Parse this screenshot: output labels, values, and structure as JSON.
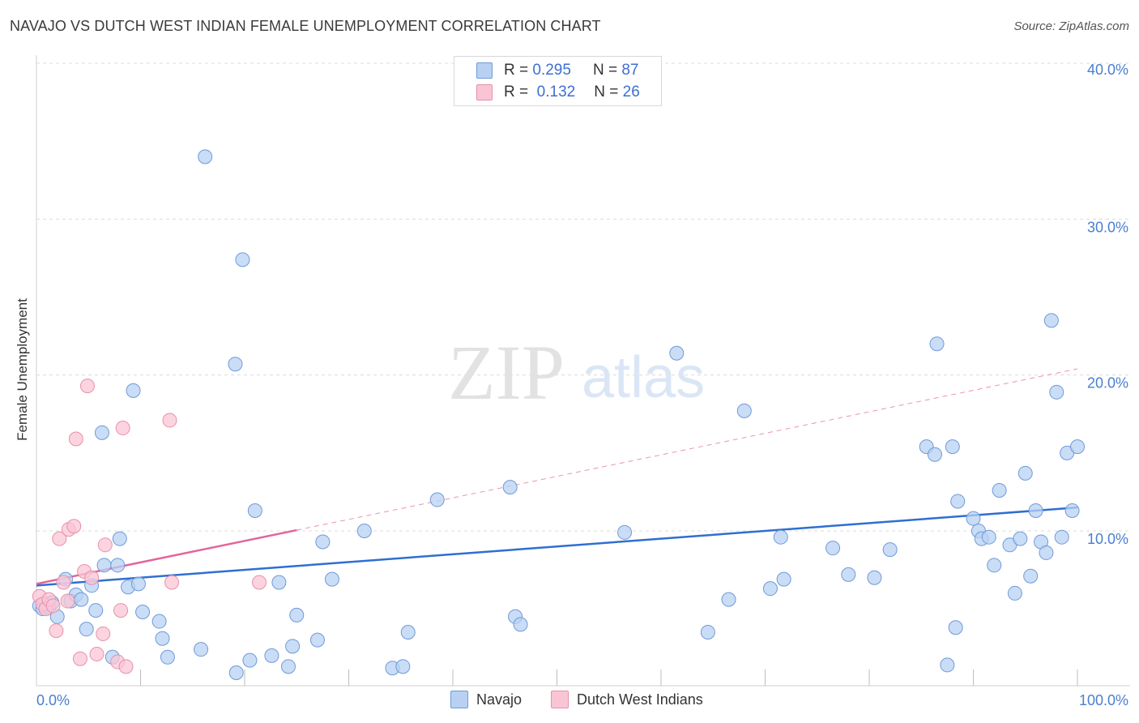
{
  "title": "NAVAJO VS DUTCH WEST INDIAN FEMALE UNEMPLOYMENT CORRELATION CHART",
  "source": "Source: ZipAtlas.com",
  "watermark": {
    "zip": "ZIP",
    "atlas": "atlas"
  },
  "legend": {
    "rows": [
      {
        "r_label": "R =",
        "r_value": "0.295",
        "n_label": "N =",
        "n_value": "87",
        "color": "#b8d1f3",
        "border": "#6f9ad8"
      },
      {
        "r_label": "R =",
        "r_value": "0.132",
        "n_label": "N =",
        "n_value": "26",
        "color": "#f9c5d5",
        "border": "#e890ab"
      }
    ]
  },
  "chart_data": {
    "type": "scatter",
    "title": "NAVAJO VS DUTCH WEST INDIAN FEMALE UNEMPLOYMENT CORRELATION CHART",
    "xlabel": "",
    "ylabel": "Female Unemployment",
    "xlim": [
      0,
      100
    ],
    "ylim": [
      0,
      40
    ],
    "x_tick_labels": [
      "0.0%",
      "100.0%"
    ],
    "y_ticks": [
      10,
      20,
      30,
      40
    ],
    "y_tick_labels": [
      "10.0%",
      "20.0%",
      "30.0%",
      "40.0%"
    ],
    "grid": true,
    "series": [
      {
        "name": "Navajo",
        "color": "#b8d1f3",
        "stroke": "#6f9ad8",
        "trend": {
          "x0": 0,
          "y0": 6.5,
          "x1": 100,
          "y1": 11.5,
          "color": "#2f6fd0"
        },
        "points": [
          [
            16.2,
            34.0
          ],
          [
            19.8,
            27.4
          ],
          [
            19.1,
            20.7
          ],
          [
            9.3,
            19.0
          ],
          [
            6.3,
            16.3
          ],
          [
            21.0,
            11.3
          ],
          [
            8.0,
            9.5
          ],
          [
            27.5,
            9.3
          ],
          [
            31.5,
            10.0
          ],
          [
            38.5,
            12.0
          ],
          [
            45.5,
            12.8
          ],
          [
            56.5,
            9.9
          ],
          [
            61.5,
            21.4
          ],
          [
            68.0,
            17.7
          ],
          [
            71.5,
            9.6
          ],
          [
            64.5,
            3.5
          ],
          [
            66.5,
            5.6
          ],
          [
            70.5,
            6.3
          ],
          [
            71.8,
            6.9
          ],
          [
            78.0,
            7.2
          ],
          [
            76.5,
            8.9
          ],
          [
            80.5,
            7.0
          ],
          [
            82.0,
            8.8
          ],
          [
            85.5,
            15.4
          ],
          [
            86.3,
            14.9
          ],
          [
            86.5,
            22.0
          ],
          [
            88.0,
            15.4
          ],
          [
            88.5,
            11.9
          ],
          [
            90.0,
            10.8
          ],
          [
            90.5,
            10.0
          ],
          [
            90.8,
            9.5
          ],
          [
            91.5,
            9.6
          ],
          [
            92.0,
            7.8
          ],
          [
            92.5,
            12.6
          ],
          [
            93.5,
            9.1
          ],
          [
            94.0,
            6.0
          ],
          [
            94.5,
            9.5
          ],
          [
            95.0,
            13.7
          ],
          [
            95.5,
            7.1
          ],
          [
            96.0,
            11.3
          ],
          [
            96.5,
            9.3
          ],
          [
            97.0,
            8.6
          ],
          [
            97.5,
            23.5
          ],
          [
            98.0,
            18.9
          ],
          [
            98.5,
            9.6
          ],
          [
            99.0,
            15.0
          ],
          [
            99.5,
            11.3
          ],
          [
            100.0,
            15.4
          ],
          [
            88.3,
            3.8
          ],
          [
            87.5,
            1.4
          ],
          [
            0.3,
            5.2
          ],
          [
            0.6,
            5.0
          ],
          [
            0.9,
            5.3
          ],
          [
            1.2,
            5.1
          ],
          [
            1.5,
            5.4
          ],
          [
            2.0,
            4.5
          ],
          [
            2.8,
            6.9
          ],
          [
            3.3,
            5.5
          ],
          [
            3.8,
            5.9
          ],
          [
            4.3,
            5.6
          ],
          [
            4.8,
            3.7
          ],
          [
            5.3,
            6.5
          ],
          [
            5.7,
            4.9
          ],
          [
            6.5,
            7.8
          ],
          [
            7.3,
            1.9
          ],
          [
            7.8,
            7.8
          ],
          [
            8.8,
            6.4
          ],
          [
            9.8,
            6.6
          ],
          [
            10.2,
            4.8
          ],
          [
            11.8,
            4.2
          ],
          [
            12.1,
            3.1
          ],
          [
            12.6,
            1.9
          ],
          [
            15.8,
            2.4
          ],
          [
            19.2,
            0.9
          ],
          [
            20.5,
            1.7
          ],
          [
            22.6,
            2.0
          ],
          [
            23.3,
            6.7
          ],
          [
            24.2,
            1.3
          ],
          [
            24.6,
            2.6
          ],
          [
            25.0,
            4.6
          ],
          [
            27.0,
            3.0
          ],
          [
            28.4,
            6.9
          ],
          [
            34.2,
            1.2
          ],
          [
            35.2,
            1.3
          ],
          [
            35.7,
            3.5
          ],
          [
            46.0,
            4.5
          ],
          [
            46.5,
            4.0
          ]
        ]
      },
      {
        "name": "Dutch West Indians",
        "color": "#f9c5d5",
        "stroke": "#e890ab",
        "trend": {
          "x0": 0,
          "y0": 6.6,
          "x1": 100,
          "y1": 20.4,
          "color": "#e2659a",
          "solid_until": 25
        },
        "points": [
          [
            0.3,
            5.8
          ],
          [
            0.6,
            5.3
          ],
          [
            0.9,
            5.0
          ],
          [
            1.2,
            5.6
          ],
          [
            1.6,
            5.2
          ],
          [
            1.9,
            3.6
          ],
          [
            2.2,
            9.5
          ],
          [
            2.6,
            6.7
          ],
          [
            3.0,
            5.5
          ],
          [
            3.1,
            10.1
          ],
          [
            3.6,
            10.3
          ],
          [
            3.8,
            15.9
          ],
          [
            4.2,
            1.8
          ],
          [
            4.6,
            7.4
          ],
          [
            4.9,
            19.3
          ],
          [
            5.3,
            7.0
          ],
          [
            5.8,
            2.1
          ],
          [
            6.4,
            3.4
          ],
          [
            6.6,
            9.1
          ],
          [
            7.8,
            1.6
          ],
          [
            8.1,
            4.9
          ],
          [
            8.3,
            16.6
          ],
          [
            8.6,
            1.3
          ],
          [
            12.8,
            17.1
          ],
          [
            13.0,
            6.7
          ],
          [
            21.4,
            6.7
          ]
        ]
      }
    ]
  },
  "bottom_legend": {
    "navajo": "Navajo",
    "dutch": "Dutch West Indians"
  }
}
